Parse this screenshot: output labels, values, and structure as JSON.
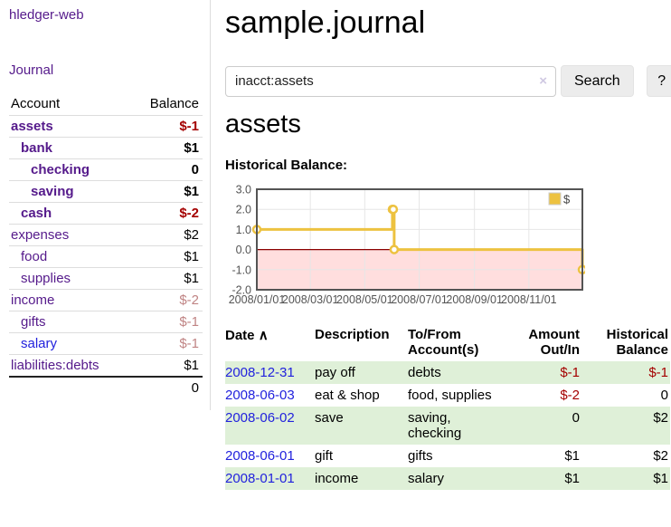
{
  "app": {
    "title": "hledger-web"
  },
  "sidebar": {
    "journal_link": "Journal",
    "table": {
      "account_header": "Account",
      "balance_header": "Balance"
    },
    "accounts": [
      {
        "name": "assets",
        "depth": 0,
        "bold": true,
        "balance": "$-1",
        "balance_style": "negative"
      },
      {
        "name": "bank",
        "depth": 1,
        "bold": true,
        "balance": "$1",
        "balance_style": "normal"
      },
      {
        "name": "checking",
        "depth": 2,
        "bold": true,
        "balance": "0",
        "balance_style": "normal"
      },
      {
        "name": "saving",
        "depth": 2,
        "bold": true,
        "balance": "$1",
        "balance_style": "normal"
      },
      {
        "name": "cash",
        "depth": 1,
        "bold": true,
        "balance": "$-2",
        "balance_style": "negative"
      },
      {
        "name": "expenses",
        "depth": 0,
        "bold": false,
        "balance": "$2",
        "balance_style": "normal"
      },
      {
        "name": "food",
        "depth": 1,
        "bold": false,
        "balance": "$1",
        "balance_style": "normal"
      },
      {
        "name": "supplies",
        "depth": 1,
        "bold": false,
        "balance": "$1",
        "balance_style": "normal"
      },
      {
        "name": "income",
        "depth": 0,
        "bold": false,
        "balance": "$-2",
        "balance_style": "negative-muted"
      },
      {
        "name": "gifts",
        "depth": 1,
        "bold": false,
        "balance": "$-1",
        "balance_style": "negative-muted"
      },
      {
        "name": "salary",
        "depth": 1,
        "bold": false,
        "link_style": "blue",
        "balance": "$-1",
        "balance_style": "negative-muted"
      },
      {
        "name": "liabilities:debts",
        "depth": 0,
        "bold": false,
        "balance": "$1",
        "balance_style": "normal"
      }
    ],
    "total": "0"
  },
  "header": {
    "title": "sample.journal"
  },
  "search": {
    "value": "inacct:assets",
    "clear_icon": "×",
    "button": "Search",
    "help_button": "?"
  },
  "account_page": {
    "title": "assets",
    "chart_label": "Historical Balance:"
  },
  "chart_data": {
    "type": "line",
    "step": true,
    "series": [
      {
        "name": "$",
        "color": "#edc240",
        "points": [
          [
            "2008-01-01",
            1
          ],
          [
            "2008-06-01",
            2
          ],
          [
            "2008-06-02",
            2
          ],
          [
            "2008-06-03",
            0
          ],
          [
            "2008-12-31",
            -1
          ]
        ]
      }
    ],
    "x_ticks": [
      "2008/01/01",
      "2008/03/01",
      "2008/05/01",
      "2008/07/01",
      "2008/09/01",
      "2008/11/01"
    ],
    "y_ticks": [
      "3.0",
      "2.0",
      "1.0",
      "0.0",
      "-1.0",
      "-2.0"
    ],
    "ylim": [
      -2,
      3
    ],
    "xlim": [
      "2008-01-01",
      "2008-12-31"
    ],
    "grid": true,
    "legend_position": "top-right",
    "negative_region_color": "#ffdede",
    "zero_line_color": "#8b0000"
  },
  "register": {
    "sort_icon": "∧",
    "headers": {
      "date": "Date",
      "description": "Description",
      "accounts": "To/From Account(s)",
      "amount": "Amount Out/In",
      "balance": "Historical Balance"
    },
    "rows": [
      {
        "date": "2008-12-31",
        "description": "pay off",
        "accounts": "debts",
        "amount": "$-1",
        "amount_style": "negative",
        "balance": "$-1",
        "balance_style": "negative"
      },
      {
        "date": "2008-06-03",
        "description": "eat & shop",
        "accounts": "food, supplies",
        "amount": "$-2",
        "amount_style": "negative",
        "balance": "0",
        "balance_style": "normal"
      },
      {
        "date": "2008-06-02",
        "description": "save",
        "accounts": "saving, checking",
        "amount": "0",
        "amount_style": "normal",
        "balance": "$2",
        "balance_style": "normal"
      },
      {
        "date": "2008-06-01",
        "description": "gift",
        "accounts": "gifts",
        "amount": "$1",
        "amount_style": "normal",
        "balance": "$2",
        "balance_style": "normal"
      },
      {
        "date": "2008-01-01",
        "description": "income",
        "accounts": "salary",
        "amount": "$1",
        "amount_style": "normal",
        "balance": "$1",
        "balance_style": "normal"
      }
    ]
  },
  "colors": {
    "brand_purple": "#551a8b",
    "link_blue": "#2222dd",
    "negative_red": "#a40000",
    "negative_muted_red": "#c08484",
    "stripe_green": "#dff0d8",
    "chart_series_yellow": "#edc240",
    "chart_negative_pink": "#ffdede",
    "chart_zero_line_red": "#8b0000"
  }
}
